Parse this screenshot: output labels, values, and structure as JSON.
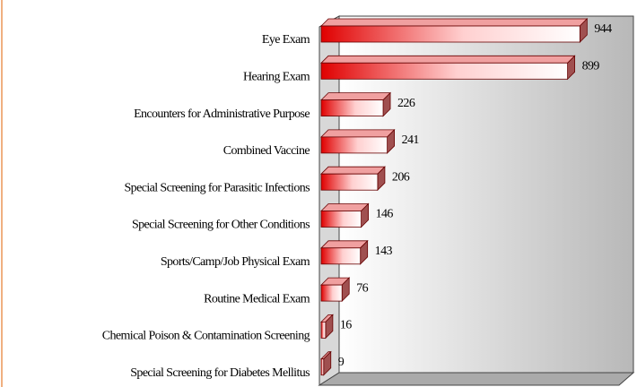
{
  "chart_data": {
    "type": "bar3d_horizontal",
    "categories": [
      "Eye Exam",
      "Hearing Exam",
      "Encounters for Administrative Purpose",
      "Combined Vaccine",
      "Special Screening for Parasitic Infections",
      "Special Screening for Other Conditions",
      "Sports/Camp/Job Physical Exam",
      "Routine Medical Exam",
      "Chemical Poison & Contamination Screening",
      "Special Screening for Diabetes Mellitus"
    ],
    "values": [
      944,
      899,
      226,
      241,
      206,
      146,
      143,
      76,
      16,
      9
    ],
    "color": "#e00000",
    "xlim": [
      0,
      1100
    ]
  }
}
